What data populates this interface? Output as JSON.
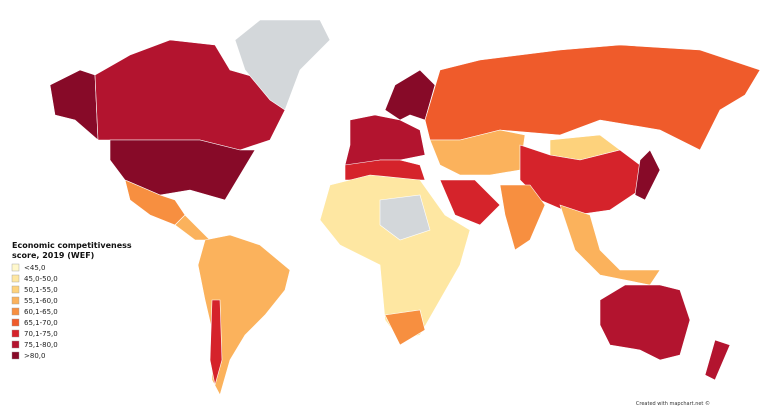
{
  "legend": {
    "title_lines": [
      "Economic competitiveness",
      "score, 2019 (WEF)"
    ],
    "items": [
      {
        "label": "<45,0",
        "color": "#fff8cc"
      },
      {
        "label": "45,0-50,0",
        "color": "#fee7a2"
      },
      {
        "label": "50,1-55,0",
        "color": "#fdd27c"
      },
      {
        "label": "55,1-60,0",
        "color": "#fbb25c"
      },
      {
        "label": "60,1-65,0",
        "color": "#f78f40"
      },
      {
        "label": "65,1-70,0",
        "color": "#ef5b2b"
      },
      {
        "label": "70,1-75,0",
        "color": "#d5232b"
      },
      {
        "label": "75,1-80,0",
        "color": "#b3142f"
      },
      {
        "label": ">80,0",
        "color": "#870a28"
      }
    ]
  },
  "no_data_color": "#d3d7da",
  "credit": "Created with mapchart.net ©"
}
